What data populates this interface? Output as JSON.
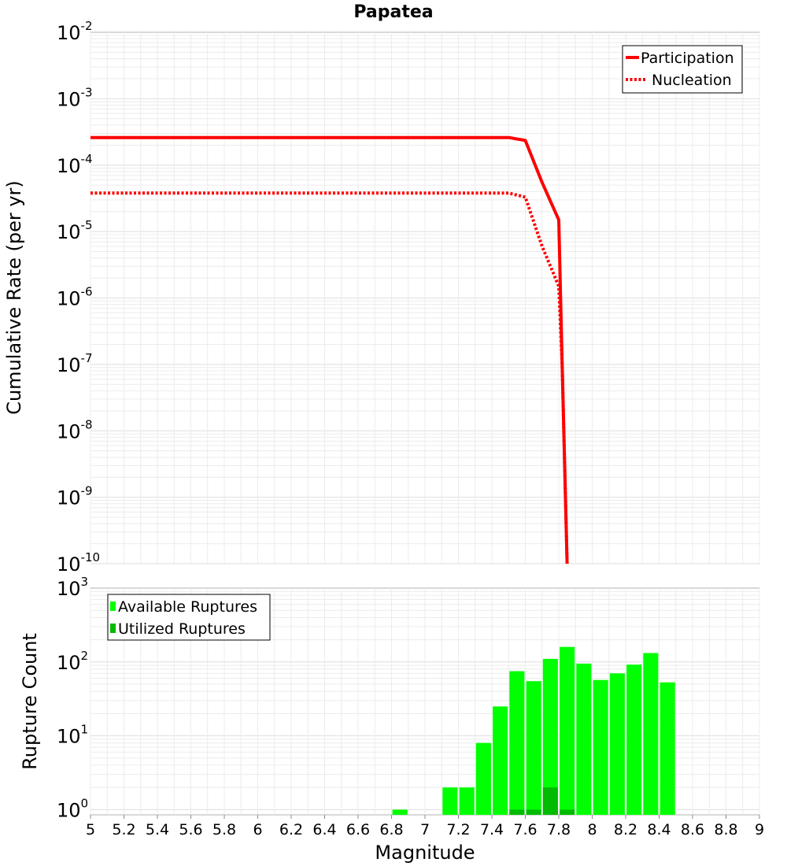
{
  "chart_data": [
    {
      "type": "line",
      "title": "Papatea",
      "xlabel": "",
      "ylabel": "Cumulative Rate (per yr)",
      "yscale": "log",
      "xlim": [
        5,
        9
      ],
      "ylim_exp": [
        -10,
        -2
      ],
      "yticks": [
        {
          "base": "10",
          "exp": "-2"
        },
        {
          "base": "10",
          "exp": "-3"
        },
        {
          "base": "10",
          "exp": "-4"
        },
        {
          "base": "10",
          "exp": "-5"
        },
        {
          "base": "10",
          "exp": "-6"
        },
        {
          "base": "10",
          "exp": "-7"
        },
        {
          "base": "10",
          "exp": "-8"
        },
        {
          "base": "10",
          "exp": "-9"
        },
        {
          "base": "10",
          "exp": "-10"
        }
      ],
      "legend_position": "top-right",
      "series": [
        {
          "name": "Participation",
          "style": "solid",
          "color": "#ff0000",
          "x": [
            5.0,
            7.5,
            7.6,
            7.7,
            7.8,
            7.82,
            7.85
          ],
          "y": [
            0.00026,
            0.00026,
            0.000235,
            5.5e-05,
            1.5e-05,
            1e-07,
            1e-10
          ]
        },
        {
          "name": "Nucleation",
          "style": "dotted",
          "color": "#ff0000",
          "x": [
            5.0,
            7.5,
            7.6,
            7.7,
            7.8,
            7.82,
            7.85
          ],
          "y": [
            3.8e-05,
            3.8e-05,
            3.3e-05,
            6e-06,
            1.5e-06,
            1e-07,
            1e-10
          ]
        }
      ]
    },
    {
      "type": "bar",
      "title": "",
      "xlabel": "Magnitude",
      "ylabel": "Rupture Count",
      "yscale": "log",
      "xlim": [
        5,
        9
      ],
      "ylim_exp": [
        -0.07,
        3
      ],
      "yticks": [
        {
          "base": "10",
          "exp": "3",
          "value": 3
        },
        {
          "base": "10",
          "exp": "2",
          "value": 2
        },
        {
          "base": "10",
          "exp": "1",
          "value": 1
        },
        {
          "base": "10",
          "exp": "0",
          "value": 0
        }
      ],
      "xtick_labels": [
        "5",
        "5.2",
        "5.4",
        "5.6",
        "5.8",
        "6",
        "6.2",
        "6.4",
        "6.6",
        "6.8",
        "7",
        "7.2",
        "7.4",
        "7.6",
        "7.8",
        "8",
        "8.2",
        "8.4",
        "8.6",
        "8.8",
        "9"
      ],
      "legend_position": "top-left",
      "series": [
        {
          "name": "Available Ruptures",
          "color": "#00ff00",
          "x": [
            6.85,
            7.15,
            7.25,
            7.35,
            7.45,
            7.55,
            7.65,
            7.75,
            7.85,
            7.95,
            8.05,
            8.15,
            8.25,
            8.35,
            8.45
          ],
          "values": [
            1,
            2,
            2,
            8,
            25,
            75,
            55,
            110,
            160,
            95,
            57,
            70,
            92,
            132,
            53
          ]
        },
        {
          "name": "Utilized Ruptures",
          "color": "#00bb00",
          "x": [
            7.55,
            7.65,
            7.75,
            7.85
          ],
          "values": [
            1,
            1,
            2,
            1
          ]
        }
      ]
    }
  ]
}
